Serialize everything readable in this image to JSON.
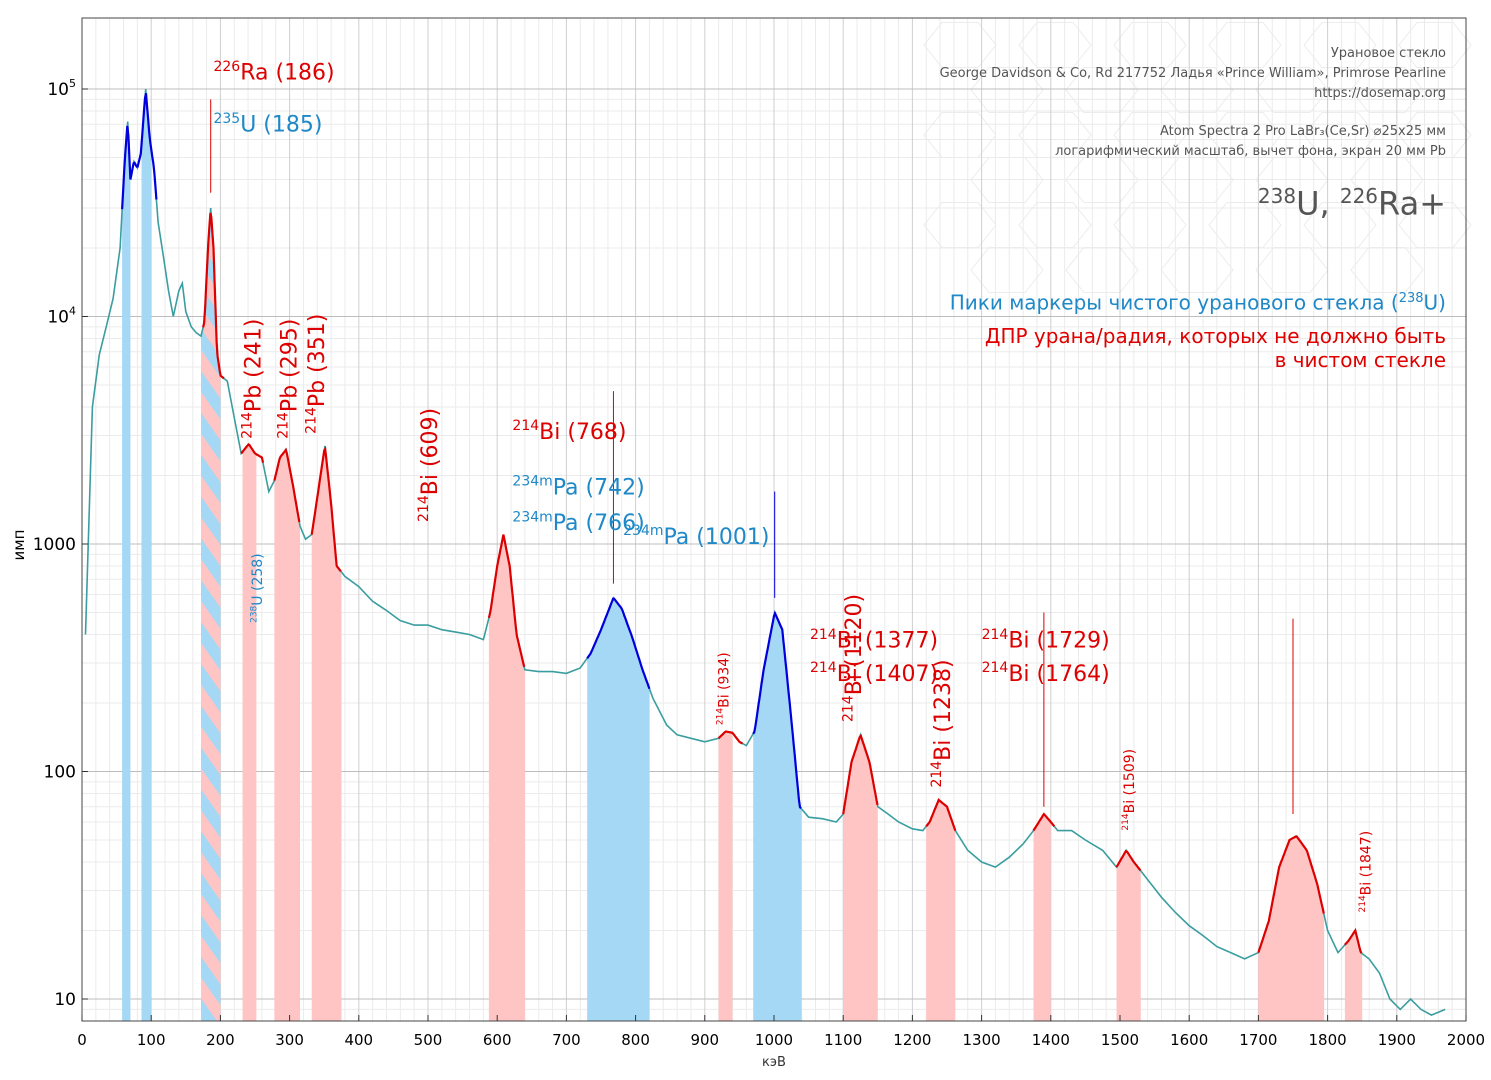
{
  "header": {
    "line1": "Урановое стекло",
    "line2": "George Davidson & Co, Rd 217752 Ладья «Prince William», Primrose Pearline",
    "line3": "https://dosemap.org",
    "line4": "Atom Spectra 2 Pro LaBr₃(Ce,Sr) ⌀25x25 мм",
    "line5": "логарифмический масштаб, вычет фона, экран 20 мм Pb",
    "big_iso1_sup": "238",
    "big_iso1": "U, ",
    "big_iso2_sup": "226",
    "big_iso2": "Ra+"
  },
  "legend": {
    "blue_text": "Пики маркеры чистого уранового стекла (",
    "blue_sup": "238",
    "blue_end": "U)",
    "red_line1": "ДПР урана/радия, которых не должно быть",
    "red_line2": "в чистом стекле"
  },
  "chart_data": {
    "type": "line",
    "xlabel": "кэВ",
    "ylabel": "имп",
    "xlim": [
      0,
      2000
    ],
    "ylim_log": [
      8,
      200000
    ],
    "log_y": true,
    "grid": true,
    "x_ticks": [
      "0",
      "100",
      "200",
      "300",
      "400",
      "500",
      "600",
      "700",
      "800",
      "900",
      "1000",
      "1100",
      "1200",
      "1300",
      "1400",
      "1500",
      "1600",
      "1700",
      "1800",
      "1900",
      "2000"
    ],
    "y_ticks": [
      {
        "value": 10,
        "label": "10"
      },
      {
        "value": 100,
        "label": "100"
      },
      {
        "value": 1000,
        "label": "1000"
      },
      {
        "value": 10000,
        "label": "10",
        "sup": "4"
      },
      {
        "value": 100000,
        "label": "10",
        "sup": "5"
      }
    ],
    "colors": {
      "curve": "#3A9DA0",
      "blue": "#0000DD",
      "red": "#DD0000",
      "blue_band": "#A5D8F5",
      "red_band": "#FFC4C4"
    },
    "spectrum": [
      [
        5,
        400
      ],
      [
        15,
        4000
      ],
      [
        25,
        6800
      ],
      [
        35,
        9000
      ],
      [
        45,
        12000
      ],
      [
        55,
        20000
      ],
      [
        62,
        50000
      ],
      [
        66,
        72000
      ],
      [
        70,
        40000
      ],
      [
        75,
        48000
      ],
      [
        80,
        45000
      ],
      [
        85,
        52000
      ],
      [
        92,
        100000
      ],
      [
        98,
        60000
      ],
      [
        104,
        45000
      ],
      [
        110,
        26000
      ],
      [
        118,
        18000
      ],
      [
        125,
        13000
      ],
      [
        132,
        10000
      ],
      [
        140,
        13000
      ],
      [
        145,
        14000
      ],
      [
        150,
        10500
      ],
      [
        158,
        9000
      ],
      [
        165,
        8500
      ],
      [
        172,
        8200
      ],
      [
        177,
        9500
      ],
      [
        182,
        20000
      ],
      [
        186,
        30000
      ],
      [
        190,
        20000
      ],
      [
        195,
        7000
      ],
      [
        200,
        5500
      ],
      [
        210,
        5200
      ],
      [
        220,
        3600
      ],
      [
        230,
        2500
      ],
      [
        241,
        2750
      ],
      [
        250,
        2500
      ],
      [
        260,
        2400
      ],
      [
        270,
        1700
      ],
      [
        278,
        1900
      ],
      [
        286,
        2400
      ],
      [
        295,
        2600
      ],
      [
        305,
        1800
      ],
      [
        315,
        1200
      ],
      [
        323,
        1050
      ],
      [
        332,
        1100
      ],
      [
        340,
        1600
      ],
      [
        351,
        2700
      ],
      [
        360,
        1500
      ],
      [
        368,
        800
      ],
      [
        380,
        720
      ],
      [
        400,
        650
      ],
      [
        420,
        560
      ],
      [
        440,
        510
      ],
      [
        460,
        460
      ],
      [
        480,
        440
      ],
      [
        500,
        440
      ],
      [
        520,
        420
      ],
      [
        540,
        410
      ],
      [
        560,
        400
      ],
      [
        580,
        380
      ],
      [
        590,
        500
      ],
      [
        600,
        800
      ],
      [
        609,
        1100
      ],
      [
        618,
        800
      ],
      [
        628,
        400
      ],
      [
        640,
        280
      ],
      [
        660,
        275
      ],
      [
        680,
        275
      ],
      [
        700,
        270
      ],
      [
        720,
        285
      ],
      [
        735,
        330
      ],
      [
        750,
        420
      ],
      [
        768,
        580
      ],
      [
        780,
        520
      ],
      [
        795,
        390
      ],
      [
        810,
        280
      ],
      [
        825,
        210
      ],
      [
        845,
        160
      ],
      [
        860,
        145
      ],
      [
        880,
        140
      ],
      [
        900,
        135
      ],
      [
        920,
        140
      ],
      [
        930,
        150
      ],
      [
        940,
        148
      ],
      [
        950,
        135
      ],
      [
        960,
        130
      ],
      [
        972,
        150
      ],
      [
        985,
        280
      ],
      [
        1001,
        500
      ],
      [
        1012,
        420
      ],
      [
        1025,
        170
      ],
      [
        1037,
        70
      ],
      [
        1050,
        63
      ],
      [
        1070,
        62
      ],
      [
        1090,
        60
      ],
      [
        1100,
        65
      ],
      [
        1112,
        110
      ],
      [
        1125,
        145
      ],
      [
        1138,
        110
      ],
      [
        1150,
        70
      ],
      [
        1165,
        65
      ],
      [
        1180,
        60
      ],
      [
        1200,
        56
      ],
      [
        1215,
        55
      ],
      [
        1225,
        60
      ],
      [
        1238,
        75
      ],
      [
        1250,
        70
      ],
      [
        1262,
        55
      ],
      [
        1280,
        45
      ],
      [
        1300,
        40
      ],
      [
        1320,
        38
      ],
      [
        1340,
        42
      ],
      [
        1360,
        48
      ],
      [
        1375,
        55
      ],
      [
        1390,
        65
      ],
      [
        1400,
        60
      ],
      [
        1410,
        55
      ],
      [
        1430,
        55
      ],
      [
        1450,
        50
      ],
      [
        1475,
        45
      ],
      [
        1495,
        38
      ],
      [
        1509,
        45
      ],
      [
        1520,
        40
      ],
      [
        1535,
        35
      ],
      [
        1560,
        28
      ],
      [
        1580,
        24
      ],
      [
        1600,
        21
      ],
      [
        1620,
        19
      ],
      [
        1640,
        17
      ],
      [
        1660,
        16
      ],
      [
        1680,
        15
      ],
      [
        1700,
        16
      ],
      [
        1715,
        22
      ],
      [
        1730,
        38
      ],
      [
        1745,
        50
      ],
      [
        1755,
        52
      ],
      [
        1770,
        45
      ],
      [
        1785,
        32
      ],
      [
        1800,
        20
      ],
      [
        1815,
        16
      ],
      [
        1830,
        18
      ],
      [
        1840,
        20
      ],
      [
        1848,
        16
      ],
      [
        1860,
        15
      ],
      [
        1875,
        13
      ],
      [
        1890,
        10
      ],
      [
        1905,
        9
      ],
      [
        1920,
        10
      ],
      [
        1935,
        9
      ],
      [
        1950,
        8.5
      ],
      [
        1970,
        9
      ]
    ],
    "series": [
      {
        "name": "",
        "color": "blue",
        "ranges": [
          [
            58,
            108
          ],
          [
            730,
            820
          ],
          [
            970,
            1040
          ]
        ]
      },
      {
        "name": "",
        "color": "red",
        "ranges": [
          [
            175,
            205
          ],
          [
            230,
            262
          ],
          [
            278,
            315
          ],
          [
            332,
            375
          ],
          [
            588,
            640
          ],
          [
            920,
            955
          ],
          [
            1100,
            1150
          ],
          [
            1220,
            1262
          ],
          [
            1375,
            1405
          ],
          [
            1495,
            1530
          ],
          [
            1700,
            1795
          ],
          [
            1825,
            1850
          ]
        ]
      }
    ],
    "bands": [
      {
        "from": 58,
        "to": 70,
        "color": "blue",
        "top": 72000
      },
      {
        "from": 86,
        "to": 100,
        "color": "blue",
        "top": 100000
      },
      {
        "from": 172,
        "to": 200,
        "color": "stripe",
        "top": 30000
      },
      {
        "from": 232,
        "to": 252,
        "color": "red",
        "top": 2750
      },
      {
        "from": 278,
        "to": 315,
        "color": "red",
        "top": 2600
      },
      {
        "from": 332,
        "to": 375,
        "color": "red",
        "top": 2700
      },
      {
        "from": 588,
        "to": 640,
        "color": "red",
        "top": 1100
      },
      {
        "from": 730,
        "to": 820,
        "color": "blue",
        "top": 580
      },
      {
        "from": 920,
        "to": 940,
        "color": "red",
        "top": 150
      },
      {
        "from": 970,
        "to": 1040,
        "color": "blue",
        "top": 500
      },
      {
        "from": 1100,
        "to": 1150,
        "color": "red",
        "top": 145
      },
      {
        "from": 1220,
        "to": 1262,
        "color": "red",
        "top": 75
      },
      {
        "from": 1375,
        "to": 1400,
        "color": "red",
        "top": 65
      },
      {
        "from": 1495,
        "to": 1530,
        "color": "red",
        "top": 45
      },
      {
        "from": 1700,
        "to": 1795,
        "color": "red",
        "top": 52
      },
      {
        "from": 1825,
        "to": 1850,
        "color": "red",
        "top": 20
      }
    ],
    "annotations": [
      {
        "kind": "h",
        "color": "red",
        "x": 190,
        "y": 110000,
        "sup": "226",
        "text": "Ra (186)"
      },
      {
        "kind": "h",
        "color": "blue",
        "x": 190,
        "y": 65000,
        "sup": "235",
        "text": "U (185)"
      },
      {
        "kind": "v",
        "color": "red",
        "x": 258,
        "y": 2900,
        "sup": "214",
        "text": "Pb (241)"
      },
      {
        "kind": "v",
        "color": "red",
        "x": 310,
        "y": 2900,
        "sup": "214",
        "text": "Pb (295)"
      },
      {
        "kind": "v",
        "color": "red",
        "x": 350,
        "y": 3050,
        "sup": "214",
        "text": "Pb (351)"
      },
      {
        "kind": "vs",
        "color": "blue",
        "x": 260,
        "y": 450,
        "sup": "238",
        "text": "U (258)"
      },
      {
        "kind": "v",
        "color": "red",
        "x": 513,
        "y": 1250,
        "sup": "214",
        "text": "Bi (609)"
      },
      {
        "kind": "h",
        "color": "red",
        "x": 622,
        "y": 2900,
        "sup": "214",
        "text": "Bi (768)"
      },
      {
        "kind": "h",
        "color": "blue",
        "x": 622,
        "y": 1650,
        "sup": "234m",
        "text": "Pa (742)"
      },
      {
        "kind": "h",
        "color": "blue",
        "x": 622,
        "y": 1150,
        "sup": "234m",
        "text": "Pa (766)"
      },
      {
        "kind": "h",
        "color": "blue",
        "x": 782,
        "y": 1000,
        "sup": "234m",
        "text": "Pa (1001)"
      },
      {
        "kind": "vs",
        "color": "red",
        "x": 934,
        "y": 160,
        "sup": "214",
        "text": "Bi (934)"
      },
      {
        "kind": "v",
        "color": "red",
        "x": 1126,
        "y": 165,
        "sup": "214",
        "text": "Bi (1120)"
      },
      {
        "kind": "v",
        "color": "red",
        "x": 1254,
        "y": 85,
        "sup": "214",
        "text": "Bi (1238)"
      },
      {
        "kind": "h",
        "color": "red",
        "x": 1052,
        "y": 350,
        "sup": "214",
        "text": "Bi (1377)"
      },
      {
        "kind": "h",
        "color": "red",
        "x": 1052,
        "y": 250,
        "sup": "214",
        "text": "Bi (1407)"
      },
      {
        "kind": "vs",
        "color": "red",
        "x": 1520,
        "y": 55,
        "sup": "214",
        "text": "Bi (1509)"
      },
      {
        "kind": "h",
        "color": "red",
        "x": 1300,
        "y": 350,
        "sup": "214",
        "text": "Bi (1729)"
      },
      {
        "kind": "h",
        "color": "red",
        "x": 1300,
        "y": 250,
        "sup": "214",
        "text": "Bi (1764)"
      },
      {
        "kind": "vs",
        "color": "red",
        "x": 1862,
        "y": 24,
        "sup": "214",
        "text": "Bi (1847)"
      }
    ],
    "leader_lines": [
      {
        "x": 186,
        "from": 90000,
        "to": 35000,
        "color": "red"
      },
      {
        "x": 768,
        "from": 4700,
        "to": 670,
        "color": "red"
      },
      {
        "x": 1001,
        "from": 1700,
        "to": 580,
        "color": "blue"
      },
      {
        "x": 1390,
        "from": 500,
        "to": 70,
        "color": "red"
      },
      {
        "x": 1750,
        "from": 470,
        "to": 65,
        "color": "red"
      }
    ]
  }
}
